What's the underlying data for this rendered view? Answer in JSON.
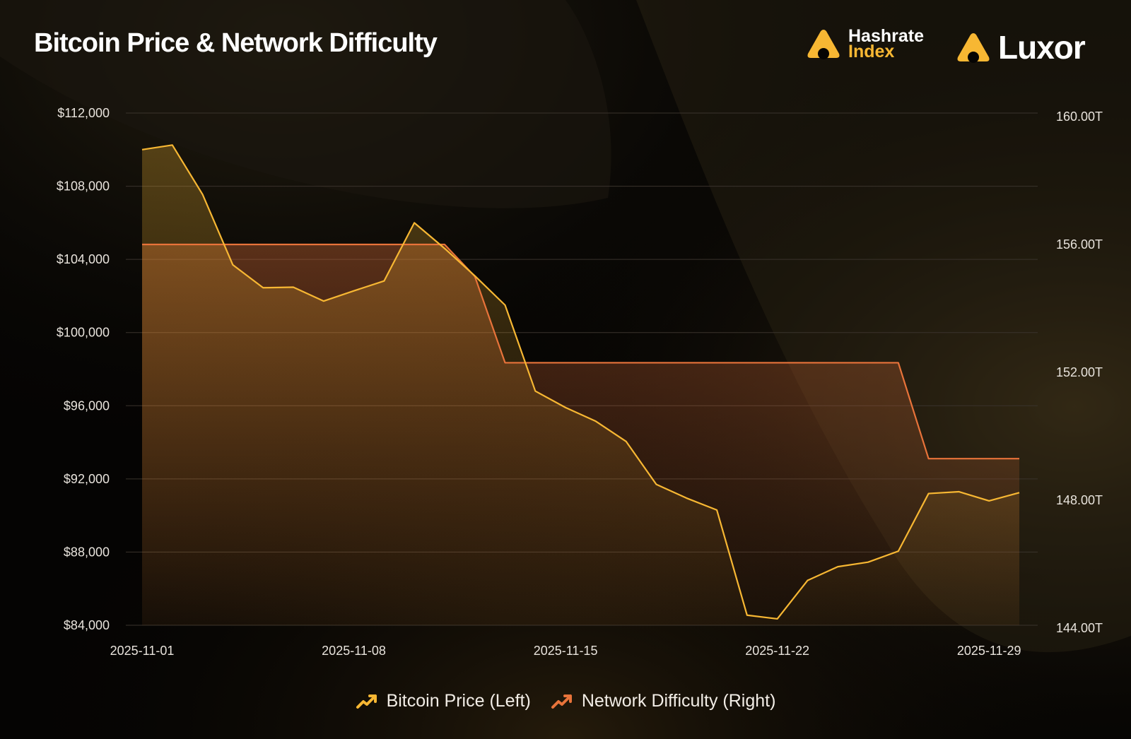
{
  "title": "Bitcoin Price & Network Difficulty",
  "brands": {
    "hashrate_line1": "Hashrate",
    "hashrate_line2": "Index",
    "luxor": "Luxor"
  },
  "colors": {
    "price": "#f7b733",
    "difficulty": "#e8733a",
    "grid": "#3a332c",
    "background": "#050403"
  },
  "chart_data": {
    "type": "line",
    "x": [
      "2025-11-01",
      "2025-11-02",
      "2025-11-03",
      "2025-11-04",
      "2025-11-05",
      "2025-11-06",
      "2025-11-07",
      "2025-11-08",
      "2025-11-09",
      "2025-11-10",
      "2025-11-11",
      "2025-11-12",
      "2025-11-13",
      "2025-11-14",
      "2025-11-15",
      "2025-11-16",
      "2025-11-17",
      "2025-11-18",
      "2025-11-19",
      "2025-11-20",
      "2025-11-21",
      "2025-11-22",
      "2025-11-23",
      "2025-11-24",
      "2025-11-25",
      "2025-11-26",
      "2025-11-27",
      "2025-11-28",
      "2025-11-29",
      "2025-11-30"
    ],
    "x_ticks": [
      "2025-11-01",
      "2025-11-08",
      "2025-11-15",
      "2025-11-22",
      "2025-11-29"
    ],
    "y_left_ticks": [
      "$84,000",
      "$88,000",
      "$92,000",
      "$96,000",
      "$100,000",
      "$104,000",
      "$108,000",
      "$112,000"
    ],
    "y_left_lim": [
      84000,
      112000
    ],
    "y_right_ticks": [
      "144.00T",
      "148.00T",
      "152.00T",
      "156.00T",
      "160.00T"
    ],
    "y_right_lim": [
      144,
      160
    ],
    "y_right_unit": "T",
    "grid": true,
    "legend_position": "bottom-center",
    "series": [
      {
        "name": "Bitcoin Price (Left)",
        "axis": "left",
        "values": [
          110000,
          110250,
          107550,
          103700,
          102450,
          102480,
          101720,
          102280,
          102820,
          106000,
          104600,
          103100,
          101500,
          96800,
          95900,
          95150,
          94050,
          91700,
          90950,
          90300,
          84550,
          84350,
          86450,
          87200,
          87450,
          88050,
          91200,
          91300,
          90800,
          91250
        ]
      },
      {
        "name": "Network Difficulty (Right)",
        "axis": "right",
        "values": [
          156.0,
          156.0,
          156.0,
          156.0,
          156.0,
          156.0,
          156.0,
          156.0,
          156.0,
          156.0,
          156.0,
          155.0,
          152.3,
          152.3,
          152.3,
          152.3,
          152.3,
          152.3,
          152.3,
          152.3,
          152.3,
          152.3,
          152.3,
          152.3,
          152.3,
          152.3,
          149.3,
          149.3,
          149.3,
          149.3
        ]
      }
    ]
  }
}
